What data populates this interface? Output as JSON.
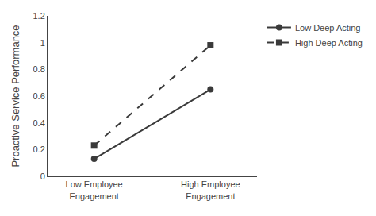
{
  "chart_data": {
    "type": "line",
    "categories": [
      "Low Employee\nEngagement",
      "High Employee\nEngagement"
    ],
    "series": [
      {
        "name": "Low Deep Acting",
        "color": "#3a3a3a",
        "marker": "circle",
        "line_style": "solid",
        "values": [
          0.13,
          0.65
        ]
      },
      {
        "name": "High Deep Acting",
        "color": "#3a3a3a",
        "marker": "square",
        "line_style": "dashed",
        "values": [
          0.23,
          0.98
        ]
      }
    ],
    "ylabel": "Proactive Service Performance",
    "ylim": [
      0,
      1.2
    ],
    "yticks": [
      0,
      0.2,
      0.4,
      0.6,
      0.8,
      1.0,
      1.2
    ],
    "grid": false,
    "legend": "right"
  }
}
